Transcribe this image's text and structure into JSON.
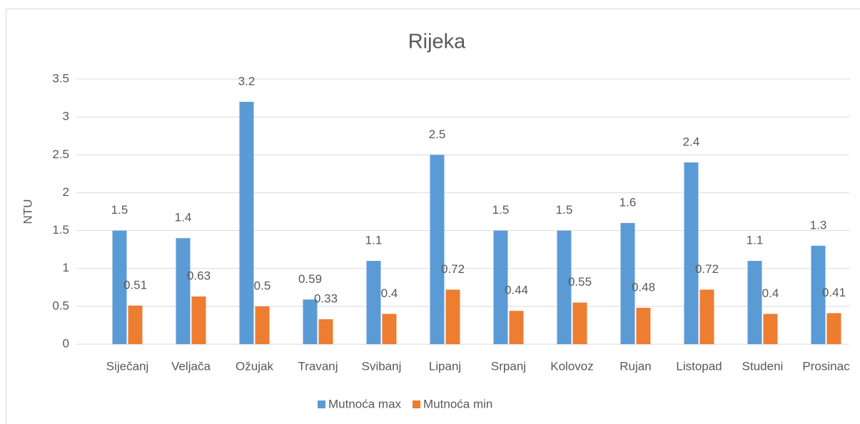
{
  "chart_data": {
    "type": "bar",
    "title": "Rijeka",
    "y_label": "NTU",
    "categories": [
      "Siječanj",
      "Veljača",
      "Ožujak",
      "Travanj",
      "Svibanj",
      "Lipanj",
      "Srpanj",
      "Kolovoz",
      "Rujan",
      "Listopad",
      "Studeni",
      "Prosinac"
    ],
    "series": [
      {
        "name": "Mutnoća max",
        "color": "#5b9bd5",
        "values": [
          1.5,
          1.4,
          3.2,
          0.59,
          1.1,
          2.5,
          1.5,
          1.5,
          1.6,
          2.4,
          1.1,
          1.3
        ]
      },
      {
        "name": "Mutnoća min",
        "color": "#ed7d31",
        "values": [
          0.51,
          0.63,
          0.5,
          0.33,
          0.4,
          0.72,
          0.44,
          0.55,
          0.48,
          0.72,
          0.4,
          0.41
        ]
      }
    ],
    "ylim": [
      0,
      3.5
    ],
    "yticks": [
      0,
      0.5,
      1,
      1.5,
      2,
      2.5,
      3,
      3.5
    ],
    "grid": true,
    "legend": "bottom"
  }
}
